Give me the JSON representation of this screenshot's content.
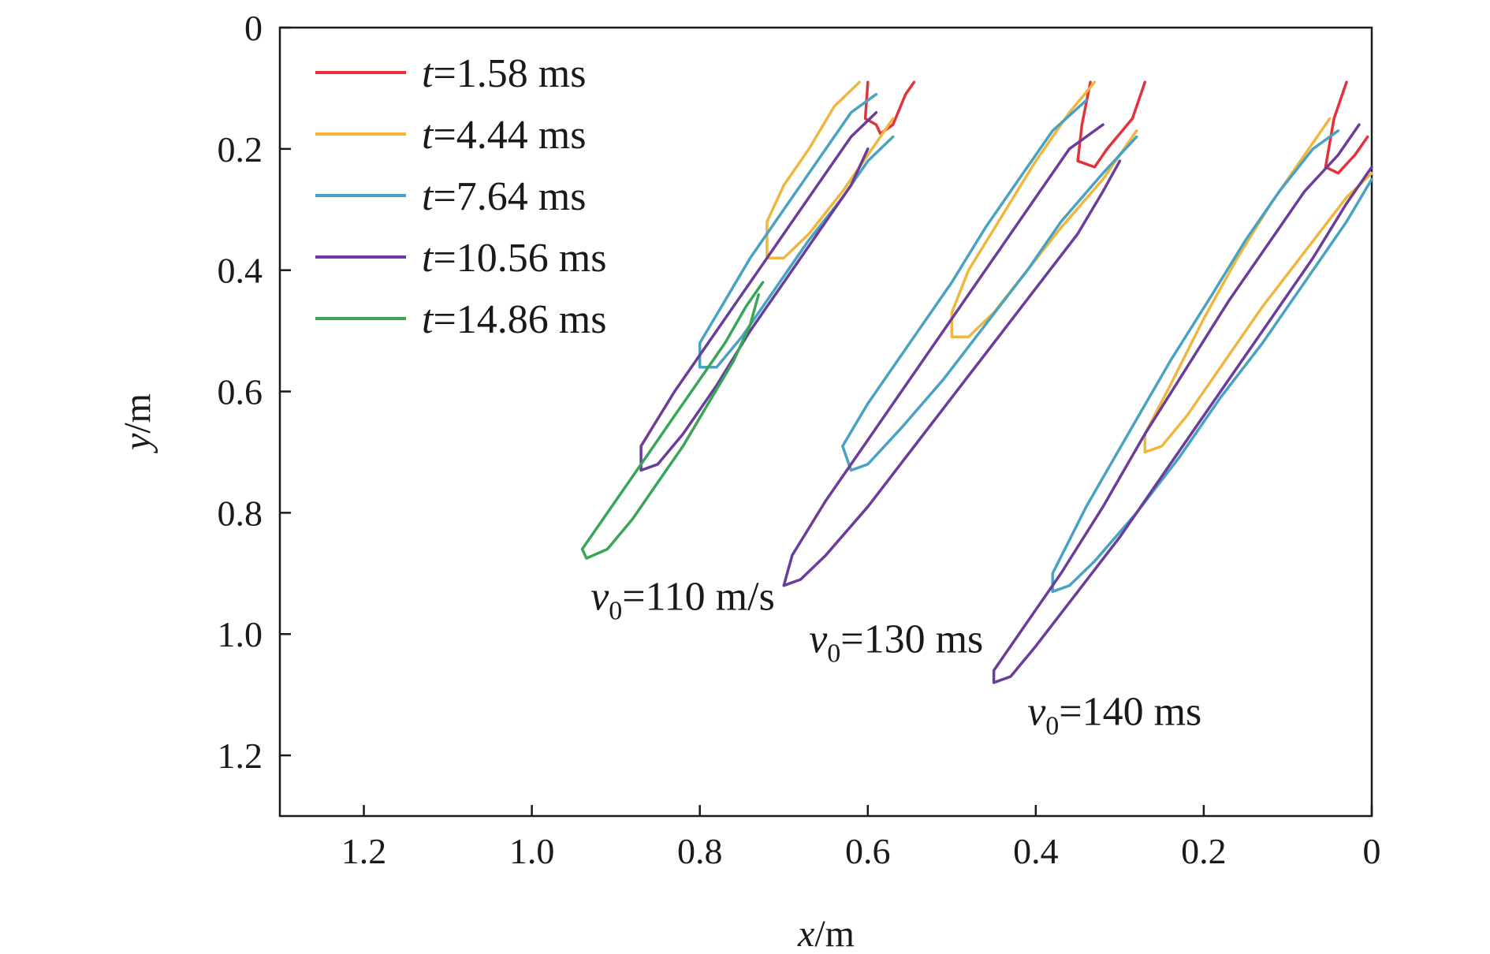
{
  "chart_data": {
    "type": "line",
    "title": "",
    "xlabel": {
      "var": "x",
      "unit": "/m"
    },
    "ylabel": {
      "var": "y",
      "unit": "/m"
    },
    "xlim": [
      1.3,
      0
    ],
    "ylim": [
      0,
      1.3
    ],
    "x_reversed": true,
    "y_reversed": true,
    "x_ticks": [
      1.2,
      1.0,
      0.8,
      0.6,
      0.4,
      0.2,
      0
    ],
    "x_tick_labels": [
      "1.2",
      "1.0",
      "0.8",
      "0.6",
      "0.4",
      "0.2",
      "0"
    ],
    "y_ticks": [
      0,
      0.2,
      0.4,
      0.6,
      0.8,
      1.0,
      1.2
    ],
    "y_tick_labels": [
      "0",
      "0.2",
      "0.4",
      "0.6",
      "0.8",
      "1.0",
      "1.2"
    ],
    "grid": false,
    "legend": {
      "placement": "top-left",
      "entries": [
        {
          "var": "t",
          "text": "=1.58 ms",
          "color": "#e3323a"
        },
        {
          "var": "t",
          "text": "=4.44 ms",
          "color": "#f0b63e"
        },
        {
          "var": "t",
          "text": "=7.64 ms",
          "color": "#4aa2c2"
        },
        {
          "var": "t",
          "text": "=10.56 ms",
          "color": "#6a3d9a"
        },
        {
          "var": "t",
          "text": "=14.86 ms",
          "color": "#3aa655"
        }
      ]
    },
    "annotations": [
      {
        "var": "v",
        "sub": "0",
        "text": "=110 m/s",
        "x": 0.93,
        "y": 0.96
      },
      {
        "var": "v",
        "sub": "0",
        "text": "=130 ms",
        "x": 0.67,
        "y": 1.03
      },
      {
        "var": "v",
        "sub": "0",
        "text": "=140 ms",
        "x": 0.41,
        "y": 1.15
      }
    ],
    "series": [
      {
        "color": "#e3323a",
        "points": [
          [
            0.6,
            0.09
          ],
          [
            0.603,
            0.15
          ],
          [
            0.59,
            0.16
          ],
          [
            0.585,
            0.175
          ],
          [
            0.57,
            0.16
          ],
          [
            0.555,
            0.11
          ],
          [
            0.545,
            0.09
          ]
        ]
      },
      {
        "color": "#e3323a",
        "points": [
          [
            0.335,
            0.09
          ],
          [
            0.345,
            0.16
          ],
          [
            0.35,
            0.22
          ],
          [
            0.33,
            0.23
          ],
          [
            0.315,
            0.2
          ],
          [
            0.285,
            0.15
          ],
          [
            0.27,
            0.09
          ]
        ]
      },
      {
        "color": "#e3323a",
        "points": [
          [
            0.03,
            0.09
          ],
          [
            0.045,
            0.15
          ],
          [
            0.055,
            0.23
          ],
          [
            0.04,
            0.24
          ],
          [
            0.02,
            0.21
          ],
          [
            0.005,
            0.18
          ]
        ]
      },
      {
        "color": "#f0b63e",
        "points": [
          [
            0.61,
            0.09
          ],
          [
            0.64,
            0.13
          ],
          [
            0.67,
            0.2
          ],
          [
            0.7,
            0.26
          ],
          [
            0.72,
            0.32
          ],
          [
            0.72,
            0.38
          ],
          [
            0.7,
            0.38
          ],
          [
            0.67,
            0.34
          ],
          [
            0.63,
            0.27
          ],
          [
            0.59,
            0.19
          ],
          [
            0.57,
            0.15
          ]
        ]
      },
      {
        "color": "#f0b63e",
        "points": [
          [
            0.33,
            0.09
          ],
          [
            0.36,
            0.14
          ],
          [
            0.4,
            0.22
          ],
          [
            0.44,
            0.31
          ],
          [
            0.48,
            0.4
          ],
          [
            0.5,
            0.47
          ],
          [
            0.5,
            0.51
          ],
          [
            0.48,
            0.51
          ],
          [
            0.45,
            0.47
          ],
          [
            0.41,
            0.4
          ],
          [
            0.37,
            0.33
          ],
          [
            0.32,
            0.25
          ],
          [
            0.28,
            0.17
          ]
        ]
      },
      {
        "color": "#f0b63e",
        "points": [
          [
            0.05,
            0.15
          ],
          [
            0.08,
            0.21
          ],
          [
            0.12,
            0.29
          ],
          [
            0.16,
            0.38
          ],
          [
            0.2,
            0.48
          ],
          [
            0.24,
            0.59
          ],
          [
            0.27,
            0.67
          ],
          [
            0.27,
            0.7
          ],
          [
            0.25,
            0.69
          ],
          [
            0.22,
            0.64
          ],
          [
            0.18,
            0.56
          ],
          [
            0.13,
            0.46
          ],
          [
            0.08,
            0.37
          ],
          [
            0.03,
            0.28
          ],
          [
            0,
            0.24
          ]
        ]
      },
      {
        "color": "#4aa2c2",
        "points": [
          [
            0.59,
            0.11
          ],
          [
            0.62,
            0.14
          ],
          [
            0.66,
            0.22
          ],
          [
            0.7,
            0.3
          ],
          [
            0.74,
            0.38
          ],
          [
            0.77,
            0.45
          ],
          [
            0.8,
            0.52
          ],
          [
            0.8,
            0.56
          ],
          [
            0.78,
            0.56
          ],
          [
            0.75,
            0.51
          ],
          [
            0.71,
            0.43
          ],
          [
            0.67,
            0.35
          ],
          [
            0.63,
            0.28
          ],
          [
            0.6,
            0.22
          ],
          [
            0.57,
            0.18
          ]
        ]
      },
      {
        "color": "#4aa2c2",
        "points": [
          [
            0.34,
            0.12
          ],
          [
            0.38,
            0.17
          ],
          [
            0.42,
            0.25
          ],
          [
            0.46,
            0.33
          ],
          [
            0.5,
            0.42
          ],
          [
            0.55,
            0.52
          ],
          [
            0.6,
            0.62
          ],
          [
            0.63,
            0.69
          ],
          [
            0.62,
            0.73
          ],
          [
            0.6,
            0.72
          ],
          [
            0.56,
            0.66
          ],
          [
            0.51,
            0.58
          ],
          [
            0.46,
            0.49
          ],
          [
            0.41,
            0.4
          ],
          [
            0.37,
            0.32
          ],
          [
            0.32,
            0.24
          ],
          [
            0.28,
            0.18
          ]
        ]
      },
      {
        "color": "#4aa2c2",
        "points": [
          [
            0.04,
            0.17
          ],
          [
            0.07,
            0.2
          ],
          [
            0.11,
            0.27
          ],
          [
            0.15,
            0.35
          ],
          [
            0.19,
            0.44
          ],
          [
            0.24,
            0.55
          ],
          [
            0.29,
            0.67
          ],
          [
            0.34,
            0.79
          ],
          [
            0.38,
            0.9
          ],
          [
            0.38,
            0.93
          ],
          [
            0.36,
            0.92
          ],
          [
            0.33,
            0.88
          ],
          [
            0.28,
            0.8
          ],
          [
            0.23,
            0.71
          ],
          [
            0.18,
            0.61
          ],
          [
            0.13,
            0.52
          ],
          [
            0.08,
            0.42
          ],
          [
            0.03,
            0.32
          ],
          [
            0,
            0.25
          ]
        ]
      },
      {
        "color": "#6a3d9a",
        "points": [
          [
            0.59,
            0.14
          ],
          [
            0.62,
            0.18
          ],
          [
            0.66,
            0.26
          ],
          [
            0.7,
            0.34
          ],
          [
            0.74,
            0.42
          ],
          [
            0.79,
            0.52
          ],
          [
            0.83,
            0.6
          ],
          [
            0.87,
            0.69
          ],
          [
            0.87,
            0.73
          ],
          [
            0.85,
            0.72
          ],
          [
            0.82,
            0.67
          ],
          [
            0.78,
            0.59
          ],
          [
            0.74,
            0.5
          ],
          [
            0.7,
            0.42
          ],
          [
            0.66,
            0.34
          ],
          [
            0.62,
            0.26
          ],
          [
            0.6,
            0.2
          ]
        ]
      },
      {
        "color": "#6a3d9a",
        "points": [
          [
            0.32,
            0.16
          ],
          [
            0.36,
            0.2
          ],
          [
            0.4,
            0.28
          ],
          [
            0.45,
            0.38
          ],
          [
            0.5,
            0.48
          ],
          [
            0.55,
            0.58
          ],
          [
            0.6,
            0.68
          ],
          [
            0.65,
            0.78
          ],
          [
            0.69,
            0.87
          ],
          [
            0.7,
            0.92
          ],
          [
            0.68,
            0.91
          ],
          [
            0.65,
            0.87
          ],
          [
            0.6,
            0.79
          ],
          [
            0.55,
            0.7
          ],
          [
            0.5,
            0.61
          ],
          [
            0.45,
            0.52
          ],
          [
            0.4,
            0.43
          ],
          [
            0.35,
            0.34
          ],
          [
            0.32,
            0.27
          ],
          [
            0.3,
            0.22
          ]
        ]
      },
      {
        "color": "#6a3d9a",
        "points": [
          [
            0.015,
            0.16
          ],
          [
            0.04,
            0.21
          ],
          [
            0.08,
            0.27
          ],
          [
            0.12,
            0.35
          ],
          [
            0.17,
            0.45
          ],
          [
            0.22,
            0.56
          ],
          [
            0.27,
            0.67
          ],
          [
            0.32,
            0.79
          ],
          [
            0.37,
            0.9
          ],
          [
            0.41,
            0.98
          ],
          [
            0.45,
            1.06
          ],
          [
            0.45,
            1.08
          ],
          [
            0.43,
            1.07
          ],
          [
            0.4,
            1.02
          ],
          [
            0.35,
            0.93
          ],
          [
            0.3,
            0.84
          ],
          [
            0.24,
            0.72
          ],
          [
            0.18,
            0.6
          ],
          [
            0.12,
            0.48
          ],
          [
            0.07,
            0.38
          ],
          [
            0.03,
            0.29
          ],
          [
            0,
            0.23
          ]
        ]
      },
      {
        "color": "#3aa655",
        "points": [
          [
            0.725,
            0.42
          ],
          [
            0.745,
            0.46
          ],
          [
            0.77,
            0.52
          ],
          [
            0.8,
            0.58
          ],
          [
            0.83,
            0.64
          ],
          [
            0.86,
            0.7
          ],
          [
            0.89,
            0.76
          ],
          [
            0.92,
            0.82
          ],
          [
            0.94,
            0.86
          ],
          [
            0.935,
            0.875
          ],
          [
            0.91,
            0.86
          ],
          [
            0.88,
            0.81
          ],
          [
            0.85,
            0.75
          ],
          [
            0.82,
            0.69
          ],
          [
            0.79,
            0.62
          ],
          [
            0.76,
            0.55
          ],
          [
            0.74,
            0.49
          ],
          [
            0.73,
            0.44
          ]
        ]
      }
    ]
  }
}
